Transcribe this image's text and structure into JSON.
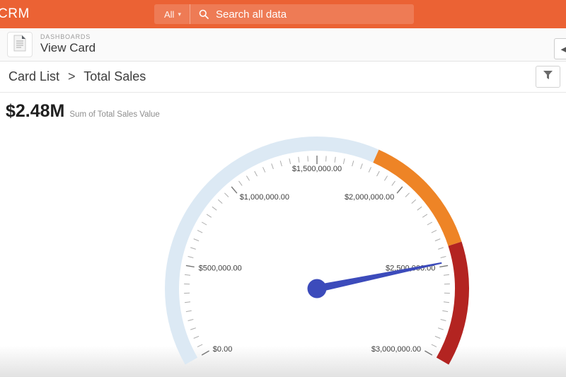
{
  "header": {
    "brand": "CRM",
    "search": {
      "scope_label": "All",
      "caret_icon": "▾",
      "placeholder": "Search all data"
    }
  },
  "subheader": {
    "eyebrow": "DASHBOARDS",
    "title": "View Card",
    "back_icon": "◄"
  },
  "breadcrumb": {
    "parent": "Card List",
    "separator": ">",
    "current": "Total Sales"
  },
  "summary": {
    "value": "$2.48M",
    "caption": "Sum of Total Sales Value"
  },
  "chart_data": {
    "type": "gauge",
    "title": "Total Sales",
    "min": 0,
    "max": 3000000,
    "value": 2480000,
    "value_display": "$2.48M",
    "start_angle": 210,
    "end_angle": -30,
    "tick_interval": 500000,
    "minor_tick_interval": 50000,
    "tick_labels": [
      "$0.00",
      "$500,000.00",
      "$1,000,000.00",
      "$1,500,000.00",
      "$2,000,000.00",
      "$2,500,000.00",
      "$3,000,000.00"
    ],
    "zones": [
      {
        "from": 0,
        "to": 1800000,
        "color": "#DCE9F4"
      },
      {
        "from": 1800000,
        "to": 2400000,
        "color": "#EE8426"
      },
      {
        "from": 2400000,
        "to": 3000000,
        "color": "#B32421"
      }
    ],
    "needle_color": "#3C4BBB",
    "label_color": "#3F3F3F",
    "minor_tick_color": "#ADADAD",
    "major_tick_color": "#777777"
  }
}
